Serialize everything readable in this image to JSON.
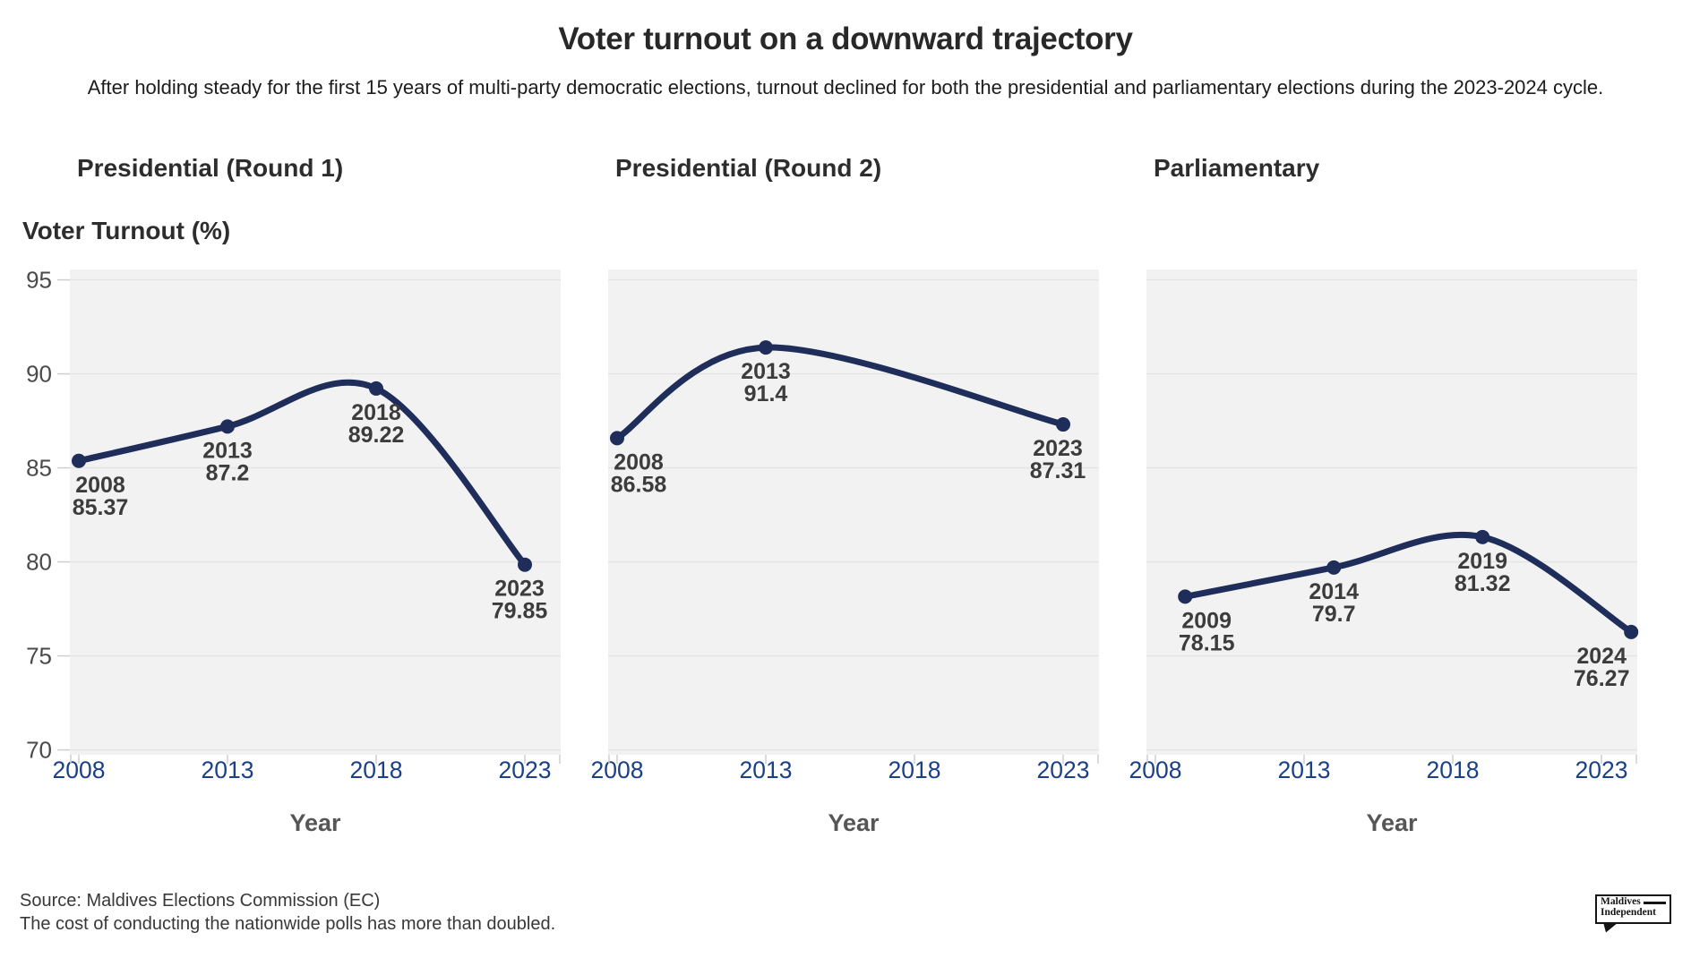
{
  "header": {
    "title": "Voter turnout on a downward trajectory",
    "subtitle": "After holding steady for the first 15 years of multi-party democratic elections, turnout declined for both the presidential and parliamentary elections during the 2023-2024 cycle."
  },
  "footer": {
    "source": "Source: Maldives Elections Commission (EC)",
    "note": "The cost of conducting the nationwide polls has more than doubled."
  },
  "logo": {
    "line1": "Maldives",
    "line2": "Independent"
  },
  "colors": {
    "line": "#1e2d5a",
    "plot_bg": "#f2f2f2",
    "gridline": "#e4e4e4",
    "tick": "#cfcfcf",
    "x_tick_label": "#1b4087",
    "y_tick_label": "#4a4a4a",
    "data_label": "#3c3c3c",
    "x_axis_title": "#565656"
  },
  "chart_data": [
    {
      "type": "line",
      "title": "Presidential (Round 1)",
      "x": [
        2008,
        2013,
        2018,
        2023
      ],
      "y": [
        85.37,
        87.2,
        89.22,
        79.85
      ],
      "point_labels": [
        [
          "2008",
          "85.37"
        ],
        [
          "2013",
          "87.2"
        ],
        [
          "2018",
          "89.22"
        ],
        [
          "2023",
          "79.85"
        ]
      ],
      "xticks": [
        "2008",
        "2013",
        "2018",
        "2023"
      ],
      "xtick_years": [
        2008,
        2013,
        2018,
        2023
      ],
      "yticks": [
        70,
        75,
        80,
        85,
        90,
        95
      ],
      "ylim": [
        70,
        95
      ],
      "xlabel": "Year",
      "ylabel": "Voter Turnout (%)",
      "grid": true,
      "show_y_axis_labels": true
    },
    {
      "type": "line",
      "title": "Presidential (Round 2)",
      "x": [
        2008,
        2013,
        2023
      ],
      "y": [
        86.58,
        91.4,
        87.31
      ],
      "point_labels": [
        [
          "2008",
          "86.58"
        ],
        [
          "2013",
          "91.4"
        ],
        [
          "2023",
          "87.31"
        ]
      ],
      "xticks": [
        "2008",
        "2013",
        "2018",
        "2023"
      ],
      "xtick_years": [
        2008,
        2013,
        2018,
        2023
      ],
      "yticks": [
        70,
        75,
        80,
        85,
        90,
        95
      ],
      "ylim": [
        70,
        95
      ],
      "xlabel": "Year",
      "ylabel": "Voter Turnout (%)",
      "grid": true,
      "show_y_axis_labels": false
    },
    {
      "type": "line",
      "title": "Parliamentary",
      "x": [
        2009,
        2014,
        2019,
        2024
      ],
      "y": [
        78.15,
        79.7,
        81.32,
        76.27
      ],
      "point_labels": [
        [
          "2009",
          "78.15"
        ],
        [
          "2014",
          "79.7"
        ],
        [
          "2019",
          "81.32"
        ],
        [
          "2024",
          "76.27"
        ]
      ],
      "xticks": [
        "2008",
        "2013",
        "2018",
        "2023"
      ],
      "xtick_years": [
        2008,
        2013,
        2018,
        2023
      ],
      "yticks": [
        70,
        75,
        80,
        85,
        90,
        95
      ],
      "ylim": [
        70,
        95
      ],
      "xlabel": "Year",
      "ylabel": "Voter Turnout (%)",
      "grid": true,
      "show_y_axis_labels": false
    }
  ]
}
